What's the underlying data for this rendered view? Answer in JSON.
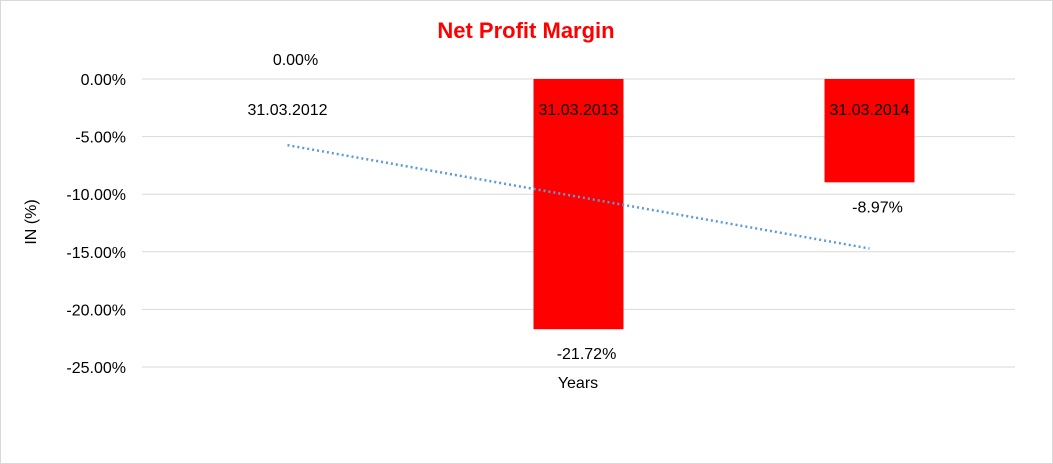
{
  "chart_data": {
    "type": "bar",
    "title": "Net Profit Margin",
    "xlabel": "Years",
    "ylabel": "IN (%)",
    "categories": [
      "31.03.2012",
      "31.03.2013",
      "31.03.2014"
    ],
    "values": [
      0.0,
      -21.72,
      -8.97
    ],
    "data_labels": [
      "0.00%",
      "-21.72%",
      "-8.97%"
    ],
    "ylim": [
      -25,
      0
    ],
    "yticks": [
      0,
      -5,
      -10,
      -15,
      -20,
      -25
    ],
    "ytick_labels": [
      "0.00%",
      "-5.00%",
      "-10.00%",
      "-15.00%",
      "-20.00%",
      "-25.00%"
    ],
    "grid": true,
    "trendline": "linear, dotted",
    "colors": {
      "bar": "#ff0000",
      "title": "#ff0000",
      "trendline": "#5b9bd5",
      "grid": "#d9d9d9"
    }
  }
}
